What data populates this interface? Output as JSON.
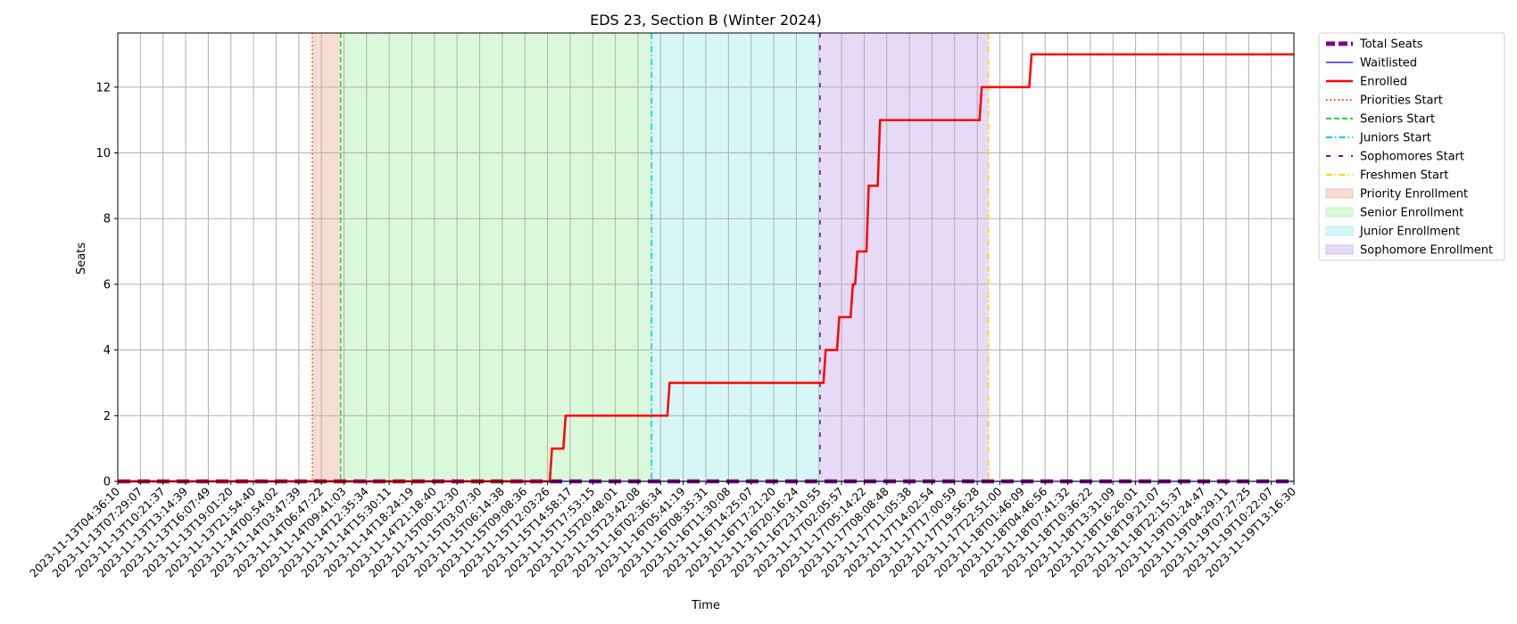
{
  "chart_data": {
    "type": "line",
    "title": "EDS 23, Section B (Winter 2024)",
    "xlabel": "Time",
    "ylabel": "Seats",
    "ylim": [
      0,
      13.65
    ],
    "yticks": [
      0,
      2,
      4,
      6,
      8,
      10,
      12
    ],
    "grid": true,
    "legend_position": "outside-top-right",
    "x_start": "2023-11-13T04:36:10",
    "x_end": "2023-11-19T13:16:30",
    "x_ticks": [
      "2023-11-13T04:36:10",
      "2023-11-13T07:29:07",
      "2023-11-13T10:21:37",
      "2023-11-13T13:14:39",
      "2023-11-13T16:07:49",
      "2023-11-13T19:01:20",
      "2023-11-13T21:54:40",
      "2023-11-14T00:54:02",
      "2023-11-14T03:47:39",
      "2023-11-14T06:47:22",
      "2023-11-14T09:41:03",
      "2023-11-14T12:35:34",
      "2023-11-14T15:30:11",
      "2023-11-14T18:24:19",
      "2023-11-14T21:18:40",
      "2023-11-15T00:12:30",
      "2023-11-15T03:07:30",
      "2023-11-15T06:14:38",
      "2023-11-15T09:08:36",
      "2023-11-15T12:03:26",
      "2023-11-15T14:58:17",
      "2023-11-15T17:53:15",
      "2023-11-15T20:48:01",
      "2023-11-15T23:42:08",
      "2023-11-16T02:36:34",
      "2023-11-16T05:41:19",
      "2023-11-16T08:35:31",
      "2023-11-16T11:30:08",
      "2023-11-16T14:25:07",
      "2023-11-16T17:21:20",
      "2023-11-16T20:16:24",
      "2023-11-16T23:10:55",
      "2023-11-17T02:05:57",
      "2023-11-17T05:14:22",
      "2023-11-17T08:08:48",
      "2023-11-17T11:05:38",
      "2023-11-17T14:02:54",
      "2023-11-17T17:00:59",
      "2023-11-17T19:56:28",
      "2023-11-17T22:51:00",
      "2023-11-18T01:46:09",
      "2023-11-18T04:46:56",
      "2023-11-18T07:41:32",
      "2023-11-18T10:36:22",
      "2023-11-18T13:31:09",
      "2023-11-18T16:26:01",
      "2023-11-18T19:21:07",
      "2023-11-18T22:15:37",
      "2023-11-19T01:24:47",
      "2023-11-19T04:29:11",
      "2023-11-19T07:27:25",
      "2023-11-19T10:22:07",
      "2023-11-19T13:16:30"
    ],
    "series": [
      {
        "name": "Total Seats",
        "color": "#800080",
        "style": "dashed-thick",
        "x": [
          0,
          52
        ],
        "y": [
          0,
          0
        ]
      },
      {
        "name": "Waitlisted",
        "color": "#0000ff",
        "style": "solid",
        "x": [
          0,
          52
        ],
        "y": [
          0,
          0
        ]
      },
      {
        "name": "Enrolled",
        "color": "#ff0000",
        "style": "solid",
        "x": [
          0,
          19.1,
          19.2,
          19.7,
          19.8,
          24.3,
          24.4,
          31.2,
          31.3,
          31.8,
          31.9,
          32.4,
          32.5,
          32.6,
          32.7,
          33.1,
          33.2,
          33.6,
          33.7,
          38.1,
          38.2,
          40.3,
          40.4,
          52
        ],
        "y": [
          0,
          0,
          1,
          1,
          2,
          2,
          3,
          3,
          4,
          4,
          5,
          5,
          6,
          6,
          7,
          7,
          9,
          9,
          11,
          11,
          12,
          12,
          13,
          13
        ]
      }
    ],
    "vlines": [
      {
        "name": "Priorities Start",
        "color": "#ff4500",
        "style": "dotted",
        "x": 8.6
      },
      {
        "name": "Seniors Start",
        "color": "#32cd32",
        "style": "dashed",
        "x": 9.85
      },
      {
        "name": "Juniors Start",
        "color": "#00ced1",
        "style": "dashdot",
        "x": 23.6
      },
      {
        "name": "Sophomores Start",
        "color": "#6a0dad",
        "style": "loosedash",
        "x": 31.05
      },
      {
        "name": "Freshmen Start",
        "color": "#ffd700",
        "style": "dashdot",
        "x": 38.5
      }
    ],
    "spans": [
      {
        "name": "Priority Enrollment",
        "color": "#e9967a",
        "x0": 8.6,
        "x1": 9.85
      },
      {
        "name": "Senior Enrollment",
        "color": "#90ee90",
        "x0": 9.85,
        "x1": 23.6
      },
      {
        "name": "Junior Enrollment",
        "color": "#87e3e8",
        "x0": 23.6,
        "x1": 31.05
      },
      {
        "name": "Sophomore Enrollment",
        "color": "#b48ee8",
        "x0": 31.05,
        "x1": 38.5
      }
    ],
    "legend": [
      "Total Seats",
      "Waitlisted",
      "Enrolled",
      "Priorities Start",
      "Seniors Start",
      "Juniors Start",
      "Sophomores Start",
      "Freshmen Start",
      "Priority Enrollment",
      "Senior Enrollment",
      "Junior Enrollment",
      "Sophomore Enrollment"
    ]
  }
}
